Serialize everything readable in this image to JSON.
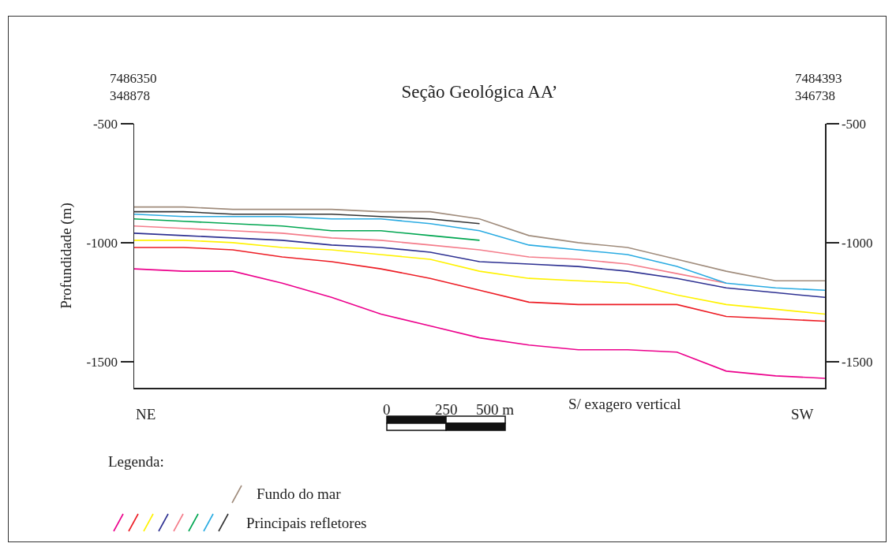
{
  "chart_data": {
    "type": "line",
    "title": "Seção Geológica AA’",
    "ylabel": "Profundidade (m)",
    "categories": [
      null,
      null,
      null,
      null,
      null,
      null,
      null,
      null,
      null,
      null,
      null,
      null,
      null,
      null,
      null
    ],
    "ylim": [
      -1610,
      -500
    ],
    "yticks": [
      -500,
      -1000,
      -1500
    ],
    "y2lim": [
      -1610,
      -500
    ],
    "y2ticks": [
      -500,
      -1000,
      -1500
    ],
    "legend": "bottom left",
    "legend_title": "Legenda:",
    "annotations": [
      "7486350\n348878",
      "7484393\n346738",
      "NE",
      "SW",
      "S/ exagero vertical",
      "0",
      "250",
      "500 m",
      "Principais refletores"
    ],
    "series": [
      {
        "name": "Fundo do mar",
        "color": "#a08c7c",
        "values": [
          -850,
          -850,
          -860,
          -860,
          -860,
          -870,
          -870,
          -900,
          -970,
          -1000,
          -1020,
          -1070,
          -1120,
          -1160,
          -1160
        ]
      },
      {
        "color": "#ec008c",
        "values": [
          -1110,
          -1120,
          -1120,
          -1170,
          -1230,
          -1300,
          -1350,
          -1400,
          -1430,
          -1450,
          -1450,
          -1460,
          -1540,
          -1560,
          -1570
        ]
      },
      {
        "color": "#ed1c24",
        "values": [
          -1020,
          -1020,
          -1030,
          -1060,
          -1080,
          -1110,
          -1150,
          -1200,
          -1250,
          -1260,
          -1260,
          -1260,
          -1310,
          -1320,
          -1330
        ]
      },
      {
        "color": "#fff200",
        "values": [
          -990,
          -990,
          -1000,
          -1020,
          -1030,
          -1050,
          -1070,
          -1120,
          -1150,
          -1160,
          -1170,
          -1220,
          -1260,
          -1280,
          -1300
        ]
      },
      {
        "color": "#2e3192",
        "values": [
          -960,
          -970,
          -980,
          -990,
          -1010,
          -1020,
          -1040,
          -1080,
          -1090,
          -1100,
          -1120,
          -1150,
          -1190,
          -1210,
          -1230
        ]
      },
      {
        "color": "#f47c8a",
        "values": [
          -930,
          -940,
          -950,
          -960,
          -980,
          -990,
          -1010,
          -1030,
          -1060,
          -1070,
          -1090,
          -1130,
          -1170,
          null,
          null
        ]
      },
      {
        "color": "#00a651",
        "values": [
          -900,
          -910,
          -920,
          -930,
          -950,
          -950,
          -970,
          -990,
          null,
          null,
          null,
          null,
          null,
          null,
          null
        ]
      },
      {
        "color": "#29abe2",
        "values": [
          -880,
          -890,
          -890,
          -890,
          -900,
          -900,
          -920,
          -950,
          -1010,
          -1030,
          -1050,
          -1100,
          -1170,
          -1190,
          -1200
        ]
      },
      {
        "color": "#333333",
        "values": [
          -870,
          -870,
          -880,
          -880,
          -880,
          -890,
          -900,
          -920,
          null,
          null,
          null,
          null,
          null,
          null,
          null
        ]
      }
    ]
  }
}
